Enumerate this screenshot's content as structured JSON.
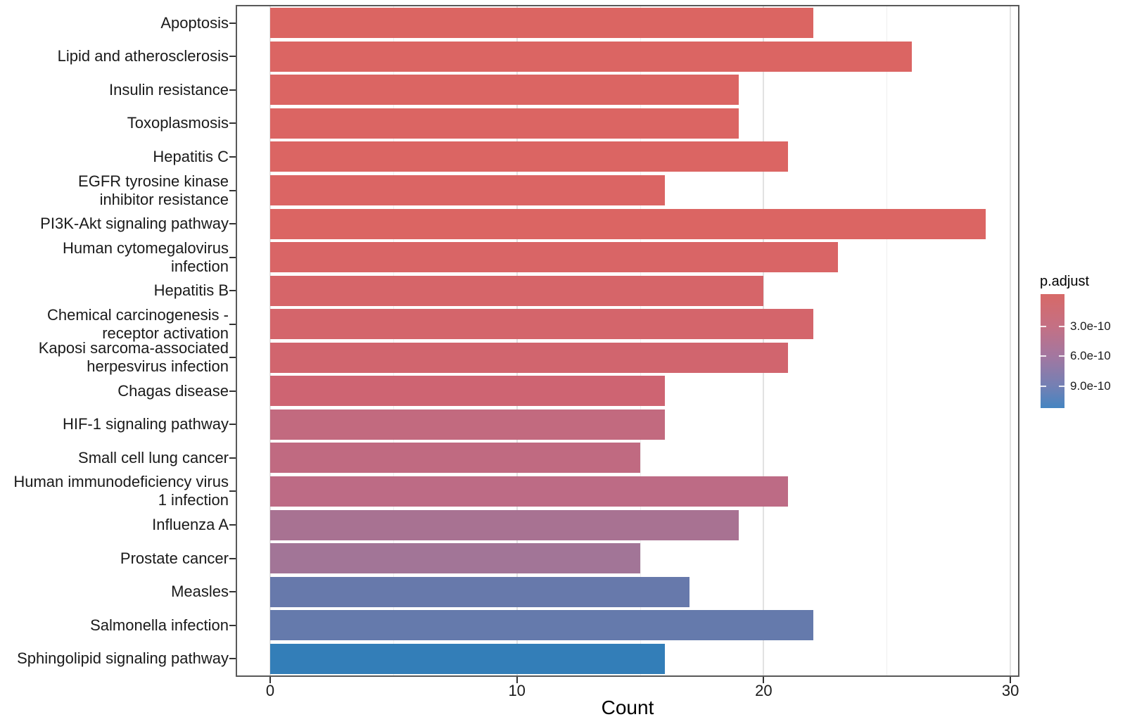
{
  "chart_data": {
    "type": "bar",
    "orientation": "horizontal",
    "title": "",
    "xlabel": "Count",
    "ylabel": "",
    "xlim": [
      0,
      30
    ],
    "x_major_ticks": [
      0,
      10,
      20,
      30
    ],
    "x_minor_ticks": [
      5,
      15,
      25
    ],
    "grid": true,
    "categories": [
      "Apoptosis",
      "Lipid and atherosclerosis",
      "Insulin resistance",
      "Toxoplasmosis",
      "Hepatitis C",
      "EGFR tyrosine kinase\ninhibitor resistance",
      "PI3K-Akt signaling pathway",
      "Human cytomegalovirus\ninfection",
      "Hepatitis B",
      "Chemical carcinogenesis -\nreceptor activation",
      "Kaposi sarcoma-associated\nherpesvirus infection",
      "Chagas disease",
      "HIF-1 signaling pathway",
      "Small cell lung cancer",
      "Human immunodeficiency virus\n1 infection",
      "Influenza A",
      "Prostate cancer",
      "Measles",
      "Salmonella infection",
      "Sphingolipid signaling pathway"
    ],
    "values": [
      22,
      26,
      19,
      19,
      21,
      16,
      29,
      23,
      20,
      22,
      21,
      16,
      16,
      15,
      21,
      19,
      15,
      17,
      22,
      16
    ],
    "bar_colors": [
      "#db6562",
      "#db6563",
      "#db6563",
      "#db6563",
      "#db6563",
      "#db6564",
      "#db6563",
      "#d96566",
      "#d66569",
      "#d4656b",
      "#d1656e",
      "#ce6472",
      "#c26a7f",
      "#c06a81",
      "#bd6b85",
      "#a87292",
      "#a27597",
      "#6779ab",
      "#657aac",
      "#337eb8"
    ],
    "legend": {
      "title": "p.adjust",
      "position": "right",
      "tick_labels": [
        "3.0e-10",
        "6.0e-10",
        "9.0e-10"
      ],
      "tick_positions_pct": [
        28.4,
        54.3,
        80.9
      ],
      "gradient_stops": [
        {
          "pct": 0,
          "color": "#d76967"
        },
        {
          "pct": 28.4,
          "color": "#c47084"
        },
        {
          "pct": 54.3,
          "color": "#a377a0"
        },
        {
          "pct": 80.9,
          "color": "#7380b4"
        },
        {
          "pct": 100,
          "color": "#4585c1"
        }
      ]
    }
  }
}
